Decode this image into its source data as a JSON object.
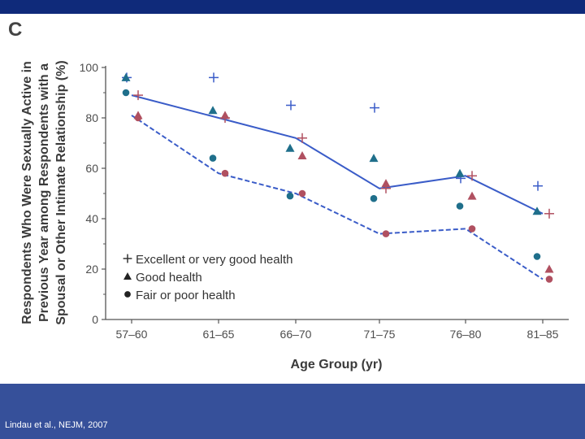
{
  "panel_letter": "C",
  "citation": "Lindau et al., NEJM, 2007",
  "colors": {
    "top_band": "#0f2a7a",
    "bottom_band": "#36509a",
    "line": "#3a5cc8",
    "good_marker": "#1f6f8b",
    "fair_marker": "#1f6f8b",
    "alt_marker": "#b05060"
  },
  "chart_data": {
    "type": "line",
    "title": "",
    "xlabel": "Age Group (yr)",
    "ylabel_lines": [
      "Respondents Who Were Sexually Active in",
      "Previous Year among Respondents with a",
      "Spousal or Other Intimate Relationship (%)"
    ],
    "categories": [
      "57–60",
      "61–65",
      "66–70",
      "71–75",
      "76–80",
      "81–85"
    ],
    "ylim": [
      0,
      100
    ],
    "yticks": [
      "0",
      "20",
      "40",
      "60",
      "80",
      "100"
    ],
    "legend": [
      "Excellent or very good health",
      "Good health",
      "Fair or poor health"
    ],
    "legend_position": "bottom-left",
    "series": [
      {
        "name": "Excellent or very good health",
        "marker": "plus",
        "color": "#3a5cc8",
        "values": [
          96,
          96,
          85,
          84,
          56,
          53
        ]
      },
      {
        "name": "Good health",
        "marker": "triangle",
        "color": "#1f6f8b",
        "values": [
          96,
          83,
          68,
          64,
          58,
          43
        ]
      },
      {
        "name": "Fair or poor health",
        "marker": "circle",
        "color": "#1f6f8b",
        "values": [
          90,
          64,
          49,
          48,
          45,
          25
        ]
      },
      {
        "name": "Excellent or very good health (comparison)",
        "marker": "plus",
        "color": "#b05060",
        "values": [
          89,
          80,
          72,
          52,
          57,
          42
        ]
      },
      {
        "name": "Good health (comparison)",
        "marker": "triangle",
        "color": "#b05060",
        "values": [
          81,
          81,
          65,
          54,
          49,
          20
        ]
      },
      {
        "name": "Fair or poor health (comparison)",
        "marker": "circle",
        "color": "#b05060",
        "values": [
          80,
          58,
          50,
          34,
          36,
          16
        ]
      }
    ],
    "lines": [
      {
        "name": "Solid trend line",
        "style": "solid",
        "values": [
          89,
          80,
          72,
          52,
          57,
          42
        ]
      },
      {
        "name": "Dashed trend line",
        "style": "dashed",
        "values": [
          81,
          58,
          50,
          34,
          36,
          16
        ]
      }
    ]
  }
}
